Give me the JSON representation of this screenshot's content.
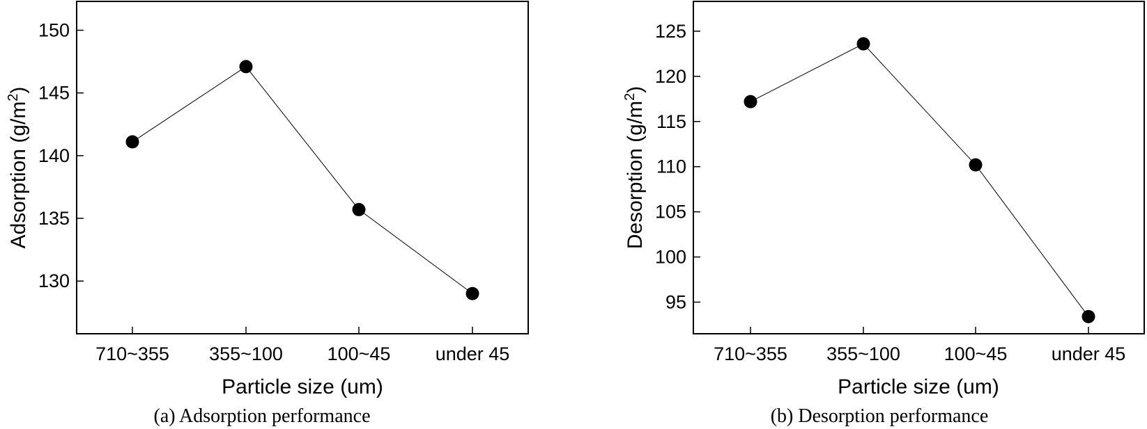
{
  "chart_data": [
    {
      "type": "line",
      "title": "",
      "caption": "(a) Adsorption performance",
      "xlabel": "Particle size (um)",
      "ylabel": "Adsorption (g/m2)",
      "ylabel_main": "Adsorption (g/m",
      "ylabel_sup": "2",
      "ylabel_end": ")",
      "categories": [
        "710~355",
        "355~100",
        "100~45",
        "under 45"
      ],
      "series": [
        {
          "name": "Adsorption",
          "values": [
            141.1,
            147.1,
            135.7,
            129.0
          ],
          "marker": "circle",
          "color": "#000000"
        }
      ],
      "ylim": [
        125.8,
        152.3
      ],
      "yticks": [
        130,
        135,
        140,
        145,
        150
      ],
      "grid": false
    },
    {
      "type": "line",
      "title": "",
      "caption": "(b) Desorption performance",
      "xlabel": "Particle size (um)",
      "ylabel": "Desorption (g/m2)",
      "ylabel_main": "Desorption (g/m",
      "ylabel_sup": "2",
      "ylabel_end": ")",
      "categories": [
        "710~355",
        "355~100",
        "100~45",
        "under 45"
      ],
      "series": [
        {
          "name": "Desorption",
          "values": [
            117.2,
            123.6,
            110.2,
            93.4
          ],
          "marker": "circle",
          "color": "#000000"
        }
      ],
      "ylim": [
        91.5,
        128.3
      ],
      "yticks": [
        95,
        100,
        105,
        110,
        115,
        120,
        125
      ],
      "grid": false
    }
  ]
}
